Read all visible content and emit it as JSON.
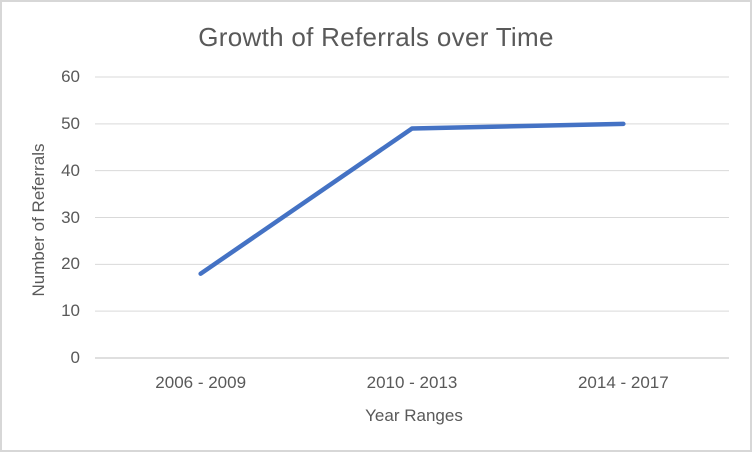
{
  "chart_data": {
    "type": "line",
    "title": "Growth of Referrals over Time",
    "xlabel": "Year Ranges",
    "ylabel": "Number of Referrals",
    "categories": [
      "2006 - 2009",
      "2010 - 2013",
      "2014 - 2017"
    ],
    "values": [
      18,
      49,
      50
    ],
    "ylim": [
      0,
      60
    ],
    "yticks": [
      0,
      10,
      20,
      30,
      40,
      50,
      60
    ],
    "grid": "horizontal-only",
    "legend": "none",
    "line_color": "#4472C4",
    "text_color": "#595959",
    "gridline_color": "#D9D9D9",
    "axis_line_color": "#BFBFBF",
    "background_color": "#FFFFFF",
    "border_color": "#D7D7D7"
  }
}
